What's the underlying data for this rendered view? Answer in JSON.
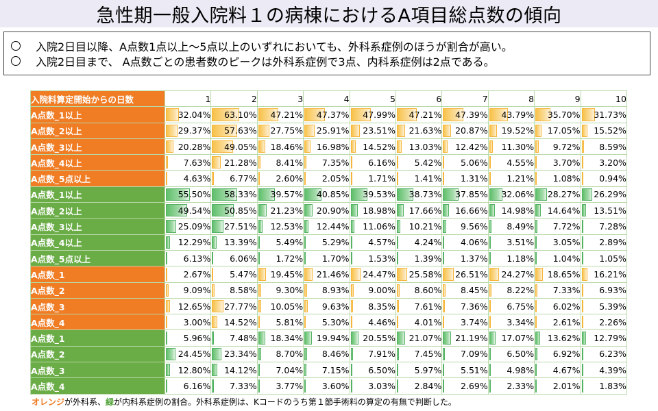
{
  "title": "急性期一般入院料１の病棟におけるA項目総点数の傾向",
  "summary": [
    "入院2日目以降、A点数1点以上～5点以上のいずれにおいても、外科系症例のほうが割合が高い。",
    "入院2日目まで、 A点数ごとの患者数のピークは外科系症例で3点、内科系症例は2点である。"
  ],
  "table": {
    "header_label": "入院料算定開始からの日数",
    "days": [
      "1",
      "2",
      "3",
      "4",
      "5",
      "6",
      "7",
      "8",
      "9",
      "10"
    ],
    "rows": [
      {
        "label": "A点数_1以上",
        "group": "orange",
        "values": [
          "32.04%",
          "63.10%",
          "47.21%",
          "47.37%",
          "47.99%",
          "47.21%",
          "47.39%",
          "43.79%",
          "35.70%",
          "31.73%"
        ]
      },
      {
        "label": "A点数_2以上",
        "group": "orange",
        "values": [
          "29.37%",
          "57.63%",
          "27.75%",
          "25.91%",
          "23.51%",
          "21.63%",
          "20.87%",
          "19.52%",
          "17.05%",
          "15.52%"
        ]
      },
      {
        "label": "A点数_3以上",
        "group": "orange",
        "values": [
          "20.28%",
          "49.05%",
          "18.46%",
          "16.98%",
          "14.52%",
          "13.03%",
          "12.42%",
          "11.30%",
          "9.72%",
          "8.59%"
        ]
      },
      {
        "label": "A点数_4以上",
        "group": "orange",
        "values": [
          "7.63%",
          "21.28%",
          "8.41%",
          "7.35%",
          "6.16%",
          "5.42%",
          "5.06%",
          "4.55%",
          "3.70%",
          "3.20%"
        ]
      },
      {
        "label": "A点数_5点以上",
        "group": "orange",
        "values": [
          "4.63%",
          "6.77%",
          "2.60%",
          "2.05%",
          "1.71%",
          "1.41%",
          "1.31%",
          "1.21%",
          "1.08%",
          "0.94%"
        ]
      },
      {
        "label": "A点数_1以上",
        "group": "green",
        "values": [
          "55.50%",
          "58.33%",
          "39.57%",
          "40.85%",
          "39.53%",
          "38.73%",
          "37.85%",
          "32.06%",
          "28.27%",
          "26.29%"
        ]
      },
      {
        "label": "A点数_2以上",
        "group": "green",
        "values": [
          "49.54%",
          "50.85%",
          "21.23%",
          "20.90%",
          "18.98%",
          "17.66%",
          "16.66%",
          "14.98%",
          "14.64%",
          "13.51%"
        ]
      },
      {
        "label": "A点数_3以上",
        "group": "green",
        "values": [
          "25.09%",
          "27.51%",
          "12.53%",
          "12.44%",
          "11.06%",
          "10.21%",
          "9.56%",
          "8.49%",
          "7.72%",
          "7.28%"
        ]
      },
      {
        "label": "A点数_4以上",
        "group": "green",
        "values": [
          "12.29%",
          "13.39%",
          "5.49%",
          "5.29%",
          "4.57%",
          "4.24%",
          "4.06%",
          "3.51%",
          "3.05%",
          "2.89%"
        ]
      },
      {
        "label": "A点数_5点以上",
        "group": "green",
        "values": [
          "6.13%",
          "6.06%",
          "1.72%",
          "1.70%",
          "1.53%",
          "1.39%",
          "1.37%",
          "1.18%",
          "1.04%",
          "1.05%"
        ]
      },
      {
        "label": "A点数_1",
        "group": "orange",
        "values": [
          "2.67%",
          "5.47%",
          "19.45%",
          "21.46%",
          "24.47%",
          "25.58%",
          "26.51%",
          "24.27%",
          "18.65%",
          "16.21%"
        ]
      },
      {
        "label": "A点数_2",
        "group": "orange",
        "values": [
          "9.09%",
          "8.58%",
          "9.30%",
          "8.93%",
          "9.00%",
          "8.60%",
          "8.45%",
          "8.22%",
          "7.33%",
          "6.93%"
        ]
      },
      {
        "label": "A点数_3",
        "group": "orange",
        "values": [
          "12.65%",
          "27.77%",
          "10.05%",
          "9.63%",
          "8.35%",
          "7.61%",
          "7.36%",
          "6.75%",
          "6.02%",
          "5.39%"
        ]
      },
      {
        "label": "A点数_4",
        "group": "orange",
        "values": [
          "3.00%",
          "14.52%",
          "5.81%",
          "5.30%",
          "4.46%",
          "4.01%",
          "3.74%",
          "3.34%",
          "2.61%",
          "2.26%"
        ]
      },
      {
        "label": "A点数_1",
        "group": "green",
        "values": [
          "5.96%",
          "7.48%",
          "18.34%",
          "19.94%",
          "20.55%",
          "21.07%",
          "21.19%",
          "17.07%",
          "13.62%",
          "12.79%"
        ]
      },
      {
        "label": "A点数_2",
        "group": "green",
        "values": [
          "24.45%",
          "23.34%",
          "8.70%",
          "8.46%",
          "7.91%",
          "7.45%",
          "7.09%",
          "6.50%",
          "6.92%",
          "6.23%"
        ]
      },
      {
        "label": "A点数_3",
        "group": "green",
        "values": [
          "12.80%",
          "14.12%",
          "7.04%",
          "7.15%",
          "6.50%",
          "5.97%",
          "5.51%",
          "4.98%",
          "4.67%",
          "4.39%"
        ]
      },
      {
        "label": "A点数_4",
        "group": "green",
        "values": [
          "6.16%",
          "7.33%",
          "3.77%",
          "3.60%",
          "3.03%",
          "2.84%",
          "2.69%",
          "2.33%",
          "2.01%",
          "1.83%"
        ]
      }
    ]
  },
  "footnote": {
    "orange_word": "オレンジ",
    "part1": "が外科系、",
    "green_word": "緑",
    "part2": "が内科系症例の割合。外科系症例は、Kコードのうち第１節手術料の算定の有無で判断した。"
  },
  "colors": {
    "orange": "#f07c24",
    "green": "#6aac46"
  }
}
